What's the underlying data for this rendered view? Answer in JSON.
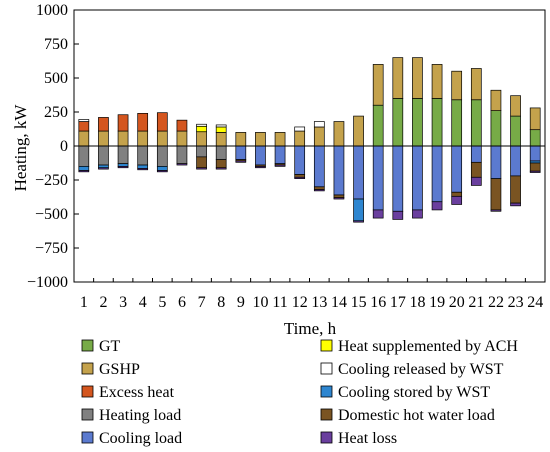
{
  "chart_data": {
    "type": "bar",
    "stacked": true,
    "xlabel": "Time, h",
    "ylabel": "Heating, kW",
    "ylim": [
      -1000,
      1000
    ],
    "yticks": [
      -1000,
      -750,
      -500,
      -250,
      0,
      250,
      500,
      750,
      1000
    ],
    "categories": [
      "1",
      "2",
      "3",
      "4",
      "5",
      "6",
      "7",
      "8",
      "9",
      "10",
      "11",
      "12",
      "13",
      "14",
      "15",
      "16",
      "17",
      "18",
      "19",
      "20",
      "21",
      "22",
      "23",
      "24"
    ],
    "legend_position": "bottom",
    "series": [
      {
        "name": "GT",
        "color": "#77AB47",
        "values": [
          0,
          0,
          0,
          0,
          0,
          0,
          0,
          0,
          0,
          0,
          0,
          0,
          0,
          0,
          0,
          300,
          350,
          350,
          350,
          340,
          340,
          260,
          220,
          120
        ]
      },
      {
        "name": "GSHP",
        "color": "#C4A24C",
        "values": [
          110,
          110,
          110,
          110,
          110,
          110,
          105,
          100,
          100,
          100,
          100,
          110,
          140,
          180,
          220,
          300,
          300,
          300,
          250,
          210,
          230,
          150,
          150,
          160
        ]
      },
      {
        "name": "Excess heat",
        "color": "#D4561F",
        "values": [
          70,
          100,
          120,
          130,
          135,
          80,
          0,
          0,
          0,
          0,
          0,
          0,
          0,
          0,
          0,
          0,
          0,
          0,
          0,
          0,
          0,
          0,
          0,
          0
        ]
      },
      {
        "name": "Heating load",
        "color": "#808080",
        "values": [
          -150,
          -140,
          -130,
          -140,
          -150,
          -130,
          -80,
          -100,
          0,
          0,
          0,
          0,
          0,
          0,
          0,
          0,
          0,
          0,
          0,
          0,
          0,
          0,
          0,
          0
        ]
      },
      {
        "name": "Cooling load",
        "color": "#5B7ACF",
        "values": [
          0,
          0,
          0,
          0,
          0,
          0,
          0,
          0,
          -100,
          -140,
          -130,
          -210,
          -300,
          -360,
          -390,
          -470,
          -480,
          -470,
          -410,
          -340,
          -120,
          -240,
          -220,
          -110
        ]
      },
      {
        "name": "Heat supplemented by ACH",
        "color": "#FFFF00",
        "values": [
          0,
          0,
          0,
          0,
          0,
          0,
          40,
          40,
          0,
          0,
          0,
          0,
          0,
          0,
          0,
          0,
          0,
          0,
          0,
          0,
          0,
          0,
          0,
          0
        ]
      },
      {
        "name": "Cooling released by WST",
        "color": "#FFFFFF",
        "values": [
          15,
          0,
          0,
          0,
          0,
          0,
          15,
          15,
          0,
          0,
          0,
          30,
          40,
          0,
          0,
          0,
          0,
          0,
          0,
          0,
          0,
          0,
          0,
          0
        ]
      },
      {
        "name": "Cooling stored by WST",
        "color": "#2E86D0",
        "values": [
          -30,
          -20,
          -20,
          -25,
          -30,
          0,
          0,
          0,
          0,
          0,
          0,
          0,
          0,
          0,
          -160,
          0,
          0,
          0,
          0,
          0,
          0,
          0,
          0,
          -15
        ]
      },
      {
        "name": "Domestic hot water load",
        "color": "#7A5422",
        "values": [
          0,
          0,
          0,
          0,
          0,
          0,
          -80,
          -60,
          -10,
          -10,
          -10,
          -20,
          -20,
          -20,
          0,
          0,
          0,
          0,
          0,
          -30,
          -110,
          -230,
          -200,
          -60
        ]
      },
      {
        "name": "Heat loss",
        "color": "#6A3F9E",
        "values": [
          -10,
          -10,
          -10,
          -10,
          -10,
          -10,
          -10,
          -10,
          -10,
          -10,
          -10,
          -10,
          -10,
          -10,
          -10,
          -60,
          -60,
          -60,
          -60,
          -60,
          -60,
          -10,
          -20,
          -10
        ]
      }
    ]
  }
}
